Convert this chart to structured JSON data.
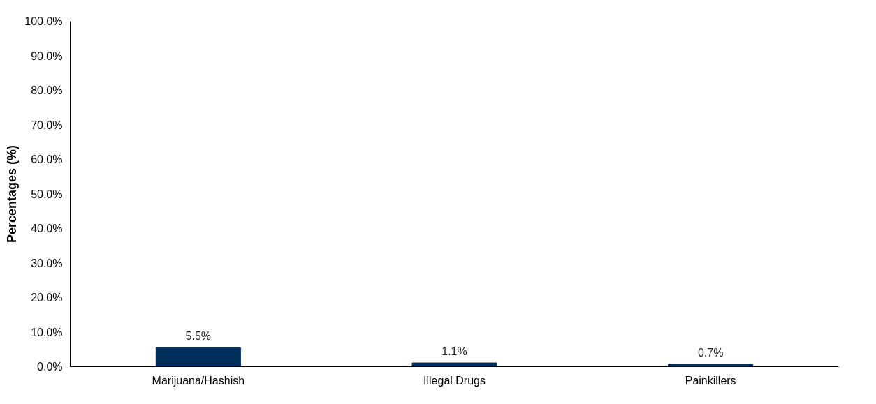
{
  "chart_data": {
    "type": "bar",
    "ylabel": "Percentages (%)",
    "categories": [
      "Marijuana/Hashish",
      "Illegal Drugs",
      "Painkillers"
    ],
    "values": [
      5.5,
      1.1,
      0.7
    ],
    "color": "#002d5a",
    "value_labels": [
      "5.5%",
      "1.1%",
      "0.7%"
    ],
    "ylim": [
      0,
      100
    ],
    "yticks": [
      {
        "value": 0,
        "label": "0.0%"
      },
      {
        "value": 10,
        "label": "10.0%"
      },
      {
        "value": 20,
        "label": "20.0%"
      },
      {
        "value": 30,
        "label": "30.0%"
      },
      {
        "value": 40,
        "label": "40.0%"
      },
      {
        "value": 50,
        "label": "50.0%"
      },
      {
        "value": 60,
        "label": "60.0%"
      },
      {
        "value": 70,
        "label": "70.0%"
      },
      {
        "value": 80,
        "label": "80.0%"
      },
      {
        "value": 90,
        "label": "90.0%"
      },
      {
        "value": 100,
        "label": "100.0%"
      }
    ],
    "grid": false
  }
}
